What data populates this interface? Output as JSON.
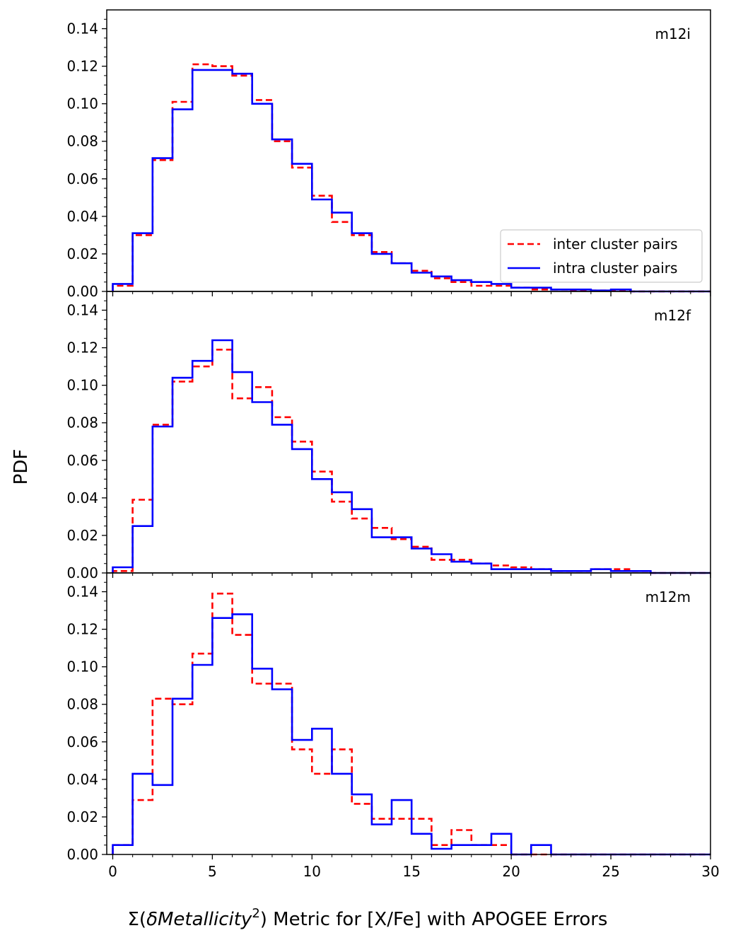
{
  "chart_data": {
    "type": "histogram",
    "ylabel": "PDF",
    "xlabel_prefix": "Σ(",
    "xlabel_italic": "δMetallicity",
    "xlabel_sup": "2",
    "xlabel_suffix": ") Metric for [X/Fe] with APOGEE Errors",
    "xlim": [
      -0.3,
      30
    ],
    "ylim": [
      0,
      0.15
    ],
    "x_ticks": [
      0,
      5,
      10,
      15,
      20,
      25,
      30
    ],
    "y_ticks": [
      0.0,
      0.02,
      0.04,
      0.06,
      0.08,
      0.1,
      0.12,
      0.14
    ],
    "bin_edges": [
      0,
      1,
      2,
      3,
      4,
      5,
      6,
      7,
      8,
      9,
      10,
      11,
      12,
      13,
      14,
      15,
      16,
      17,
      18,
      19,
      20,
      21,
      22,
      23,
      24,
      25,
      26,
      27,
      28,
      29,
      30
    ],
    "legend": {
      "position": "lower-right of top panel",
      "entries": [
        {
          "label": "inter cluster pairs",
          "color": "#ff0000",
          "style": "dashed"
        },
        {
          "label": "intra cluster pairs",
          "color": "#0000ff",
          "style": "solid"
        }
      ]
    },
    "panels": [
      {
        "label": "m12i",
        "series": [
          {
            "name": "inter cluster pairs",
            "color": "#ff0000",
            "style": "dashed",
            "values": [
              0.003,
              0.03,
              0.07,
              0.101,
              0.121,
              0.12,
              0.115,
              0.102,
              0.08,
              0.066,
              0.051,
              0.037,
              0.03,
              0.021,
              0.015,
              0.011,
              0.007,
              0.005,
              0.003,
              0.003,
              0.002,
              0.001,
              0.001,
              0.0005,
              0.0005,
              0.0003,
              0,
              0,
              0,
              0
            ]
          },
          {
            "name": "intra cluster pairs",
            "color": "#0000ff",
            "style": "solid",
            "values": [
              0.004,
              0.031,
              0.071,
              0.097,
              0.118,
              0.118,
              0.116,
              0.1,
              0.081,
              0.068,
              0.049,
              0.042,
              0.031,
              0.02,
              0.015,
              0.01,
              0.008,
              0.006,
              0.005,
              0.004,
              0.002,
              0.002,
              0.001,
              0.001,
              0.0005,
              0.001,
              0,
              0,
              0,
              0
            ]
          }
        ]
      },
      {
        "label": "m12f",
        "series": [
          {
            "name": "inter cluster pairs",
            "color": "#ff0000",
            "style": "dashed",
            "values": [
              0.001,
              0.039,
              0.079,
              0.102,
              0.11,
              0.119,
              0.093,
              0.099,
              0.083,
              0.07,
              0.054,
              0.038,
              0.029,
              0.024,
              0.018,
              0.014,
              0.007,
              0.007,
              0.005,
              0.004,
              0.003,
              0.002,
              0.001,
              0.001,
              0.002,
              0.002,
              0.001,
              0,
              0,
              0
            ]
          },
          {
            "name": "intra cluster pairs",
            "color": "#0000ff",
            "style": "solid",
            "values": [
              0.003,
              0.025,
              0.078,
              0.104,
              0.113,
              0.124,
              0.107,
              0.091,
              0.079,
              0.066,
              0.05,
              0.043,
              0.034,
              0.019,
              0.019,
              0.013,
              0.01,
              0.006,
              0.005,
              0.002,
              0.002,
              0.002,
              0.001,
              0.001,
              0.002,
              0.001,
              0.001,
              0,
              0,
              0
            ]
          }
        ]
      },
      {
        "label": "m12m",
        "series": [
          {
            "name": "inter cluster pairs",
            "color": "#ff0000",
            "style": "dashed",
            "values": [
              0.005,
              0.029,
              0.083,
              0.08,
              0.107,
              0.139,
              0.117,
              0.091,
              0.091,
              0.056,
              0.043,
              0.056,
              0.027,
              0.019,
              0.019,
              0.019,
              0.005,
              0.013,
              0.005,
              0.005,
              0,
              0,
              0,
              0,
              0,
              0,
              0,
              0,
              0,
              0
            ]
          },
          {
            "name": "intra cluster pairs",
            "color": "#0000ff",
            "style": "solid",
            "values": [
              0.005,
              0.043,
              0.037,
              0.083,
              0.101,
              0.126,
              0.128,
              0.099,
              0.088,
              0.061,
              0.067,
              0.043,
              0.032,
              0.016,
              0.029,
              0.011,
              0.003,
              0.005,
              0.005,
              0.011,
              0,
              0.005,
              0,
              0,
              0,
              0,
              0,
              0,
              0,
              0
            ]
          }
        ]
      }
    ]
  }
}
